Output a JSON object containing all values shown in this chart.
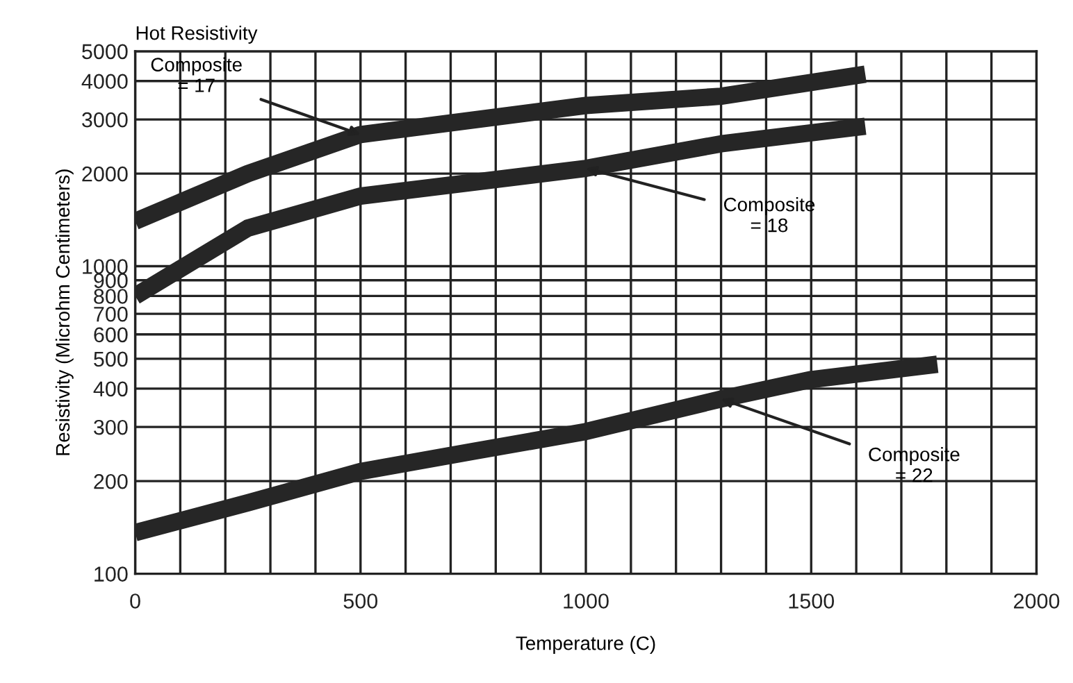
{
  "chart_data": {
    "type": "line",
    "title": "Hot Resistivity",
    "xlabel": "Temperature (C)",
    "ylabel": "Resistivity (Microhm Centimeters)",
    "series": [
      {
        "color": "#262626",
        "x": [
          0,
          250,
          500,
          1000,
          1300,
          1620
        ],
        "values": [
          1400,
          2000,
          2680,
          3330,
          3570,
          4210
        ]
      },
      {
        "color": "#262626",
        "x": [
          0,
          250,
          500,
          1000,
          1300,
          1620
        ],
        "values": [
          800,
          1330,
          1690,
          2080,
          2500,
          2850
        ]
      },
      {
        "color": "#262626",
        "x": [
          0,
          250,
          500,
          750,
          1000,
          1300,
          1500,
          1780
        ],
        "values": [
          136,
          170,
          215,
          250,
          290,
          370,
          428,
          480
        ]
      }
    ],
    "annotations": [
      {
        "text": "Composite\n= 17",
        "x": 500,
        "y": 2680
      },
      {
        "text": "Composite\n= 18",
        "x": 1000,
        "y": 2080
      },
      {
        "text": "Composite\n= 22",
        "x": 1300,
        "y": 370
      }
    ],
    "log": "y",
    "xlim": [
      0,
      2000
    ],
    "ylim": [
      100,
      5000
    ],
    "xticks": [
      0,
      {
        "value": 100,
        "label": null
      },
      {
        "value": 200,
        "label": null
      },
      {
        "value": 300,
        "label": null
      },
      {
        "value": 400,
        "label": null
      },
      500,
      {
        "value": 600,
        "label": null
      },
      {
        "value": 700,
        "label": null
      },
      {
        "value": 800,
        "label": null
      },
      {
        "value": 900,
        "label": null
      },
      1000,
      {
        "value": 1100,
        "label": null
      },
      {
        "value": 1200,
        "label": null
      },
      {
        "value": 1300,
        "label": null
      },
      {
        "value": 1400,
        "label": null
      },
      1500,
      {
        "value": 1600,
        "label": null
      },
      {
        "value": 1700,
        "label": null
      },
      {
        "value": 1800,
        "label": null
      },
      {
        "value": 1900,
        "label": null
      },
      2000
    ],
    "yticks": [
      100,
      200,
      300,
      400,
      500,
      600,
      700,
      800,
      900,
      1000,
      2000,
      3000,
      4000,
      5000
    ],
    "grid": true,
    "legend": false
  }
}
